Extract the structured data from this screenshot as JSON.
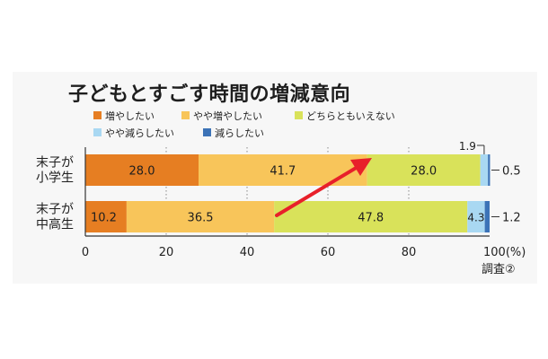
{
  "chart_data": {
    "type": "bar",
    "title": "子どもとすごす時間の増減意向",
    "orientation": "horizontal",
    "stacked": true,
    "categories": [
      "末子が\n小学生",
      "末子が\n中高生"
    ],
    "series": [
      {
        "name": "増やしたい",
        "color": "#e67e22",
        "values": [
          28.0,
          10.2
        ],
        "labels": [
          "28.0",
          "10.2"
        ]
      },
      {
        "name": "やや増やしたい",
        "color": "#f8c55a",
        "values": [
          41.7,
          36.5
        ],
        "labels": [
          "41.7",
          "36.5"
        ]
      },
      {
        "name": "どちらともいえない",
        "color": "#d9e25a",
        "values": [
          28.0,
          47.8
        ],
        "labels": [
          "28.0",
          "47.8"
        ]
      },
      {
        "name": "やや減らしたい",
        "color": "#a9d8f2",
        "values": [
          1.9,
          4.3
        ],
        "labels": [
          "1.9",
          "4.3"
        ]
      },
      {
        "name": "減らしたい",
        "color": "#3c73b7",
        "values": [
          0.5,
          1.2
        ],
        "labels": [
          "0.5",
          "1.2"
        ]
      }
    ],
    "xlim": [
      0,
      100
    ],
    "xticks": [
      "0",
      "20",
      "40",
      "60",
      "80",
      "100(%)"
    ],
    "grid": "dotted-vertical",
    "legend_position": "top",
    "annotation": "調査②"
  }
}
